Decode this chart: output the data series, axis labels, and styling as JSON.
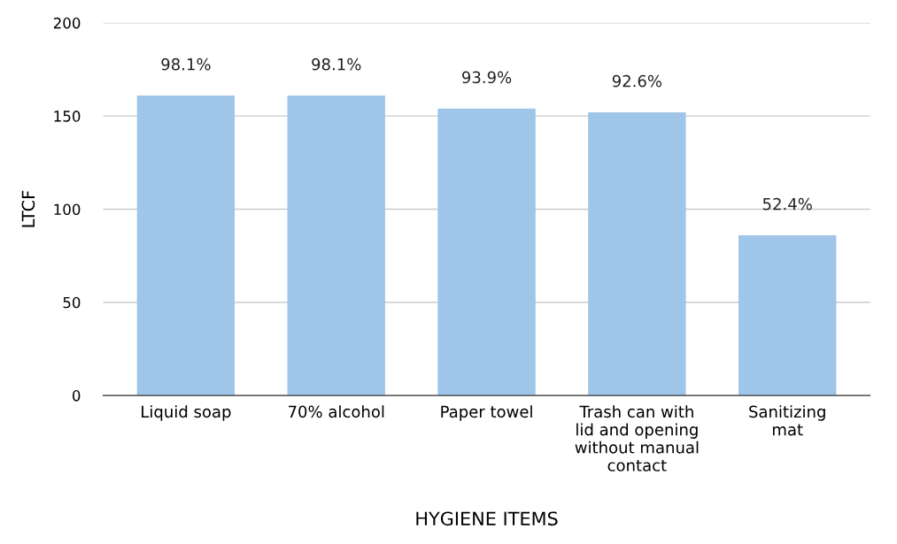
{
  "chart_data": {
    "type": "bar",
    "xlabel": "HYGIENE ITEMS",
    "ylabel": "LTCF",
    "categories": [
      "Liquid soap",
      "70% alcohol",
      "Paper towel",
      "Trash can with\nlid and opening\nwithout manual\ncontact",
      "Sanitizing\nmat"
    ],
    "values": [
      161,
      161,
      154,
      152,
      86
    ],
    "annotations": [
      {
        "text": "98.1%",
        "x": "Liquid soap",
        "y": 161
      },
      {
        "text": "98.1%",
        "x": "70% alcohol",
        "y": 161
      },
      {
        "text": "93.9%",
        "x": "Paper towel",
        "y": 154
      },
      {
        "text": "92.6%",
        "x": "Trash can with\nlid and opening\nwithout manual\ncontact",
        "y": 152
      },
      {
        "text": "52.4%",
        "x": "Sanitizing\nmat",
        "y": 86
      }
    ],
    "color": "#9fc5e8",
    "ylim": [
      0,
      200
    ],
    "yticks": [
      0,
      50,
      100,
      150,
      200
    ],
    "grid": "y"
  }
}
